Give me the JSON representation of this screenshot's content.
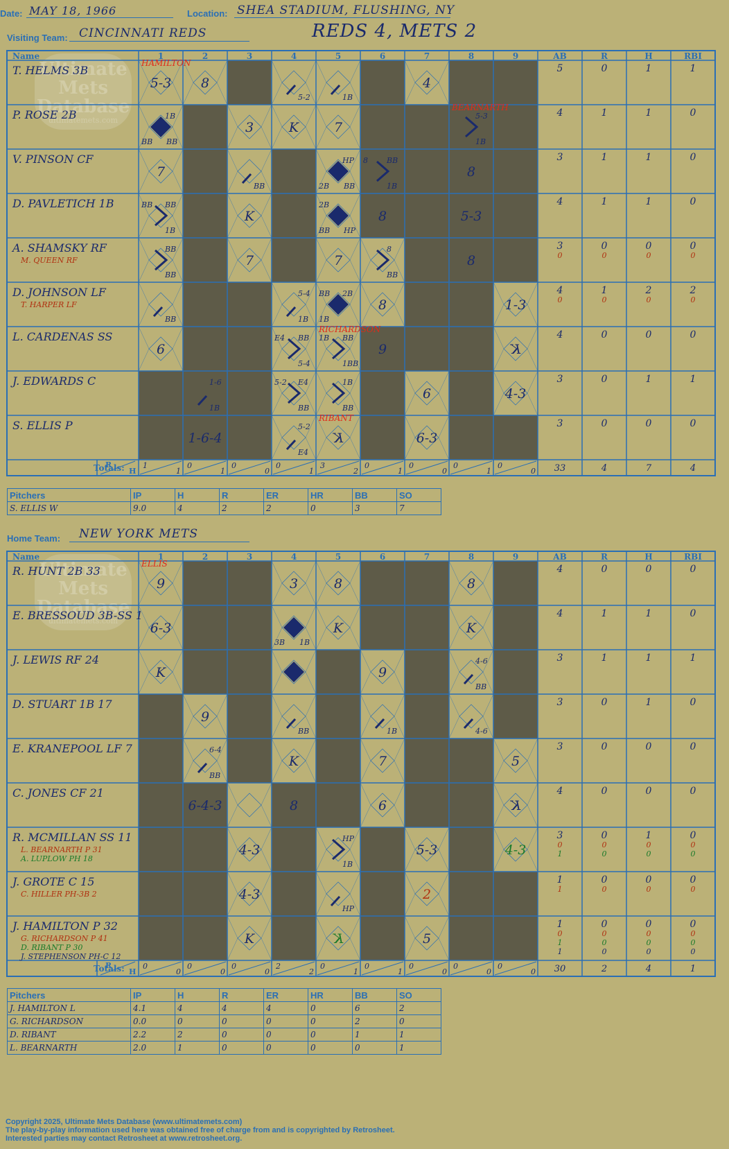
{
  "header": {
    "date_label": "Date:",
    "date": "MAY 18, 1966",
    "location_label": "Location:",
    "location": "SHEA STADIUM, FLUSHING, NY",
    "visiting_label": "Visiting Team:",
    "visiting_team": "CINCINNATI REDS",
    "result": "REDS 4, METS 2",
    "home_label": "Home Team:",
    "home_team": "NEW YORK METS"
  },
  "watermark": {
    "line1": "Ultimate",
    "line2": "Mets",
    "line3": "Database",
    "url": "ultimatemets.com"
  },
  "grid_headers": {
    "name": "Name",
    "innings": [
      "1",
      "2",
      "3",
      "4",
      "5",
      "6",
      "7",
      "8",
      "9"
    ],
    "stats": [
      "AB",
      "R",
      "H",
      "RBI"
    ],
    "totals": "Totals:",
    "r_label": "R",
    "h_label": "H"
  },
  "visitors": {
    "batters": [
      {
        "name": "T. HELMS 3B",
        "subs": [],
        "stats": [
          [
            "5",
            "0",
            "1",
            "1"
          ]
        ],
        "cells": {
          "1": {
            "txt": "5-3",
            "top": "HAMILTON"
          },
          "2": {
            "txt": "8"
          },
          "4": {
            "path": 1,
            "s2": "5-2"
          },
          "5": {
            "path": 1,
            "s2": "1B"
          },
          "7": {
            "txt": "4"
          }
        }
      },
      {
        "name": "P. ROSE 2B",
        "subs": [],
        "stats": [
          [
            "4",
            "1",
            "1",
            "0"
          ]
        ],
        "cells": {
          "1": {
            "run": 1,
            "s1": "1B",
            "s3": "BB",
            "s4": "BB"
          },
          "3": {
            "txt": "3"
          },
          "4": {
            "txt": "K"
          },
          "5": {
            "txt": "7"
          },
          "8": {
            "path": 2,
            "s1": "5-3",
            "s2": "1B",
            "top": "BEARNARTH"
          }
        }
      },
      {
        "name": "V. PINSON CF",
        "subs": [],
        "stats": [
          [
            "3",
            "1",
            "1",
            "0"
          ]
        ],
        "cells": {
          "1": {
            "txt": "7"
          },
          "3": {
            "path": 1,
            "s2": "BB"
          },
          "5": {
            "run": 1,
            "s1": "HP",
            "s3": "2B",
            "s4": "BB"
          },
          "6": {
            "path": 2,
            "s1": "BB",
            "s2": "1B",
            "s0": "8"
          },
          "8": {
            "txt": "8"
          }
        }
      },
      {
        "name": "D. PAVLETICH 1B",
        "subs": [],
        "stats": [
          [
            "4",
            "1",
            "1",
            "0"
          ]
        ],
        "cells": {
          "1": {
            "path": 2,
            "s0": "BB",
            "s1": "BB",
            "s2": "1B"
          },
          "3": {
            "txt": "K"
          },
          "5": {
            "run": 1,
            "s0": "2B",
            "s3": "BB",
            "s4": "HP"
          },
          "6": {
            "txt": "8"
          },
          "8": {
            "txt": "5-3"
          }
        }
      },
      {
        "name": "A. SHAMSKY RF",
        "subs": [
          {
            "name": "M. QUEEN RF",
            "color": "#b03010"
          }
        ],
        "stats": [
          [
            "3",
            "0",
            "0",
            "0"
          ],
          [
            "0",
            "0",
            "0",
            "0"
          ]
        ],
        "cells": {
          "1": {
            "path": 2,
            "s1": "BB",
            "s2": "BB"
          },
          "3": {
            "txt": "7"
          },
          "5": {
            "txt": "7"
          },
          "6": {
            "path": 2,
            "s1": "8",
            "s2": "BB"
          },
          "8": {
            "txt": "8"
          }
        }
      },
      {
        "name": "D. JOHNSON LF",
        "subs": [
          {
            "name": "T. HARPER LF",
            "color": "#b03010"
          }
        ],
        "stats": [
          [
            "4",
            "1",
            "2",
            "2"
          ],
          [
            "0",
            "0",
            "0",
            "0"
          ]
        ],
        "cells": {
          "1": {
            "path": 1,
            "s2": "BB"
          },
          "4": {
            "path": 1,
            "s1": "5-4",
            "s2": "1B"
          },
          "5": {
            "run": 1,
            "s0": "BB",
            "s1": "2B",
            "s3": "1B"
          },
          "6": {
            "txt": "8"
          },
          "9": {
            "txt": "1-3"
          }
        }
      },
      {
        "name": "L. CARDENAS SS",
        "subs": [],
        "stats": [
          [
            "4",
            "0",
            "0",
            "0"
          ]
        ],
        "cells": {
          "1": {
            "txt": "6"
          },
          "4": {
            "path": 2,
            "s0": "E4",
            "s1": "BB",
            "s2": "5-4"
          },
          "5": {
            "path": 2,
            "s0": "1B",
            "s1": "BB",
            "s2": "1BB",
            "top": "RICHARDSON"
          },
          "6": {
            "txt": "9"
          },
          "9": {
            "txt": "K",
            "rev": 1
          }
        }
      },
      {
        "name": "J. EDWARDS C",
        "subs": [],
        "stats": [
          [
            "3",
            "0",
            "1",
            "1"
          ]
        ],
        "cells": {
          "2": {
            "path": 1,
            "s1": "1-6",
            "s2": "1B"
          },
          "4": {
            "path": 2,
            "s0": "5-2",
            "s1": "E4",
            "s2": "BB"
          },
          "5": {
            "path": 2,
            "s1": "1B",
            "s2": "BB"
          },
          "7": {
            "txt": "6"
          },
          "9": {
            "txt": "4-3"
          }
        }
      },
      {
        "name": "S. ELLIS P",
        "subs": [],
        "stats": [
          [
            "3",
            "0",
            "0",
            "0"
          ]
        ],
        "cells": {
          "2": {
            "txt": "1-6-4"
          },
          "4": {
            "path": 1,
            "s1": "5-2",
            "s2": "E4"
          },
          "5": {
            "txt": "K",
            "rev": 1,
            "top": "RIBANT"
          },
          "7": {
            "txt": "6-3"
          }
        }
      }
    ],
    "shaded": [
      [
        2,
        3,
        6,
        7
      ],
      [
        8,
        9
      ],
      [
        1,
        2,
        8,
        9
      ],
      [
        1,
        2,
        6,
        7,
        9
      ],
      [
        1,
        2,
        6,
        7,
        9
      ],
      [
        1,
        2,
        4,
        7,
        9
      ],
      [
        2,
        3,
        7,
        8,
        9
      ],
      [
        2,
        3,
        4,
        8
      ],
      [
        1,
        3,
        6,
        8
      ],
      [
        1,
        3,
        6,
        8,
        9
      ]
    ],
    "shade_cols": {
      "1": [
        7,
        8
      ],
      "2": [
        1,
        2,
        3,
        4,
        5,
        6,
        7,
        8
      ],
      "3": [
        0,
        5,
        6,
        7,
        8
      ],
      "4": [
        2,
        3,
        4
      ],
      "5": [],
      "6": [
        0,
        1,
        2,
        3,
        6,
        7,
        8
      ],
      "7": [
        1,
        2,
        3,
        4,
        5,
        6
      ],
      "8": [
        0,
        1,
        2,
        3,
        4,
        5,
        6,
        7,
        8
      ],
      "9": [
        0,
        1,
        2,
        3,
        4,
        8
      ]
    },
    "totals": {
      "rh": [
        [
          "1",
          "1"
        ],
        [
          "0",
          "1"
        ],
        [
          "0",
          "0"
        ],
        [
          "0",
          "1"
        ],
        [
          "3",
          "2"
        ],
        [
          "0",
          "1"
        ],
        [
          "0",
          "0"
        ],
        [
          "0",
          "1"
        ],
        [
          "0",
          "0"
        ]
      ],
      "stats": [
        "33",
        "4",
        "7",
        "4"
      ]
    }
  },
  "visitor_pitchers": {
    "label": "Pitchers",
    "cols": [
      "IP",
      "H",
      "R",
      "ER",
      "HR",
      "BB",
      "SO"
    ],
    "rows": [
      {
        "name": "S. ELLIS  W",
        "vals": [
          "9.0",
          "4",
          "2",
          "2",
          "0",
          "3",
          "7"
        ]
      }
    ]
  },
  "home": {
    "batters": [
      {
        "name": "R. HUNT 2B  33",
        "subs": [],
        "stats": [
          [
            "4",
            "0",
            "0",
            "0"
          ]
        ],
        "cells": {
          "1": {
            "txt": "9",
            "top": "ELLIS"
          },
          "4": {
            "txt": "3"
          },
          "5": {
            "txt": "8"
          },
          "8": {
            "txt": "8"
          }
        }
      },
      {
        "name": "E. BRESSOUD 3B-SS  1",
        "subs": [],
        "stats": [
          [
            "4",
            "1",
            "1",
            "0"
          ]
        ],
        "cells": {
          "1": {
            "txt": "6-3"
          },
          "4": {
            "run": 1,
            "s3": "3B",
            "s4": "1B"
          },
          "5": {
            "txt": "K"
          },
          "8": {
            "txt": "K"
          }
        }
      },
      {
        "name": "J. LEWIS RF  24",
        "subs": [],
        "stats": [
          [
            "3",
            "1",
            "1",
            "1"
          ]
        ],
        "cells": {
          "1": {
            "txt": "K"
          },
          "4": {
            "run": 1
          },
          "6": {
            "txt": "9"
          },
          "8": {
            "path": 1,
            "s1": "4-6",
            "s2": "BB"
          }
        }
      },
      {
        "name": "D. STUART 1B  17",
        "subs": [],
        "stats": [
          [
            "3",
            "0",
            "1",
            "0"
          ]
        ],
        "cells": {
          "2": {
            "txt": "9"
          },
          "4": {
            "path": 1,
            "s2": "BB"
          },
          "6": {
            "path": 1,
            "s2": "1B"
          },
          "8": {
            "path": 1,
            "s2": "4-6"
          }
        }
      },
      {
        "name": "E. KRANEPOOL LF  7",
        "subs": [],
        "stats": [
          [
            "3",
            "0",
            "0",
            "0"
          ]
        ],
        "cells": {
          "2": {
            "path": 1,
            "s1": "6-4",
            "s2": "BB"
          },
          "4": {
            "txt": "K"
          },
          "6": {
            "txt": "7"
          },
          "9": {
            "txt": "5"
          }
        }
      },
      {
        "name": "C. JONES CF  21",
        "subs": [],
        "stats": [
          [
            "4",
            "0",
            "0",
            "0"
          ]
        ],
        "cells": {
          "2": {
            "txt": "6-4-3"
          },
          "4": {
            "txt": "8"
          },
          "6": {
            "txt": "6"
          },
          "9": {
            "txt": "K",
            "rev": 1
          }
        }
      },
      {
        "name": "R. MCMILLAN SS  11",
        "subs": [
          {
            "name": "L. BEARNARTH P  31",
            "color": "#b03010"
          },
          {
            "name": "A. LUPLOW PH  18",
            "color": "#1a7a2a"
          }
        ],
        "stats": [
          [
            "3",
            "0",
            "1",
            "0"
          ],
          [
            "0",
            "0",
            "0",
            "0"
          ],
          [
            "1",
            "0",
            "0",
            "0"
          ]
        ],
        "cells": {
          "3": {
            "txt": "4-3"
          },
          "5": {
            "path": 2,
            "s1": "HP",
            "s2": "1B"
          },
          "7": {
            "txt": "5-3"
          },
          "9": {
            "txt": "4-3",
            "color": "#1a7a2a"
          }
        }
      },
      {
        "name": "J. GROTE C  15",
        "subs": [
          {
            "name": "C. HILLER PH-3B  2",
            "color": "#b03010"
          }
        ],
        "stats": [
          [
            "1",
            "0",
            "0",
            "0"
          ],
          [
            "1",
            "0",
            "0",
            "0"
          ]
        ],
        "cells": {
          "3": {
            "txt": "4-3"
          },
          "5": {
            "path": 1,
            "s2": "HP"
          },
          "7": {
            "txt": "2",
            "color": "#b03010"
          }
        }
      },
      {
        "name": "J. HAMILTON P  32",
        "subs": [
          {
            "name": "G. RICHARDSON P  41",
            "color": "#b03010"
          },
          {
            "name": "D. RIBANT P  30",
            "color": "#1a7a2a"
          },
          {
            "name": "J. STEPHENSON PH-C  12",
            "color": "#1a2a6c"
          }
        ],
        "stats": [
          [
            "1",
            "0",
            "0",
            "0"
          ],
          [
            "0",
            "0",
            "0",
            "0"
          ],
          [
            "1",
            "0",
            "0",
            "0"
          ],
          [
            "1",
            "0",
            "0",
            "0"
          ]
        ],
        "cells": {
          "3": {
            "txt": "K"
          },
          "5": {
            "txt": "K",
            "rev": 1,
            "color": "#1a7a2a"
          },
          "7": {
            "txt": "5"
          }
        }
      }
    ],
    "shade_cols": {
      "1": [
        3,
        4,
        5,
        6,
        7,
        8
      ],
      "2": [
        0,
        1,
        2,
        5,
        6,
        7,
        8
      ],
      "3": [
        0,
        1,
        2,
        3,
        4
      ],
      "4": [
        5,
        6,
        7,
        8
      ],
      "5": [
        2,
        3,
        4,
        5
      ],
      "6": [
        0,
        1,
        6,
        7,
        8
      ],
      "7": [
        0,
        1,
        2,
        3,
        4,
        5
      ],
      "8": [
        4,
        5,
        6,
        7,
        8
      ],
      "9": [
        0,
        1,
        2,
        3,
        7,
        8
      ]
    },
    "totals": {
      "rh": [
        [
          "0",
          "0"
        ],
        [
          "0",
          "0"
        ],
        [
          "0",
          "0"
        ],
        [
          "2",
          "2"
        ],
        [
          "0",
          "1"
        ],
        [
          "0",
          "1"
        ],
        [
          "0",
          "0"
        ],
        [
          "0",
          "0"
        ],
        [
          "0",
          "0"
        ]
      ],
      "stats": [
        "30",
        "2",
        "4",
        "1"
      ]
    }
  },
  "home_pitchers": {
    "label": "Pitchers",
    "cols": [
      "IP",
      "H",
      "R",
      "ER",
      "HR",
      "BB",
      "SO"
    ],
    "rows": [
      {
        "name": "J. HAMILTON  L",
        "vals": [
          "4.1",
          "4",
          "4",
          "4",
          "0",
          "6",
          "2"
        ]
      },
      {
        "name": "G. RICHARDSON",
        "vals": [
          "0.0",
          "0",
          "0",
          "0",
          "0",
          "2",
          "0"
        ]
      },
      {
        "name": "D. RIBANT",
        "vals": [
          "2.2",
          "2",
          "0",
          "0",
          "0",
          "1",
          "1"
        ]
      },
      {
        "name": "L. BEARNARTH",
        "vals": [
          "2.0",
          "1",
          "0",
          "0",
          "0",
          "0",
          "1"
        ]
      }
    ]
  },
  "footer": {
    "line1": "Copyright 2025, Ultimate Mets Database (www.ultimatemets.com)",
    "line2": "The play-by-play information used here was obtained free of charge from and is copyrighted by Retrosheet.",
    "line3": "Interested parties may contact Retrosheet at www.retrosheet.org."
  },
  "colors": {
    "background": "#bbb177",
    "grid": "#2a6fb5",
    "shade": "#5e5b48",
    "ink": "#1a2a6c",
    "red": "#e02a1a",
    "green": "#1a7a2a"
  }
}
